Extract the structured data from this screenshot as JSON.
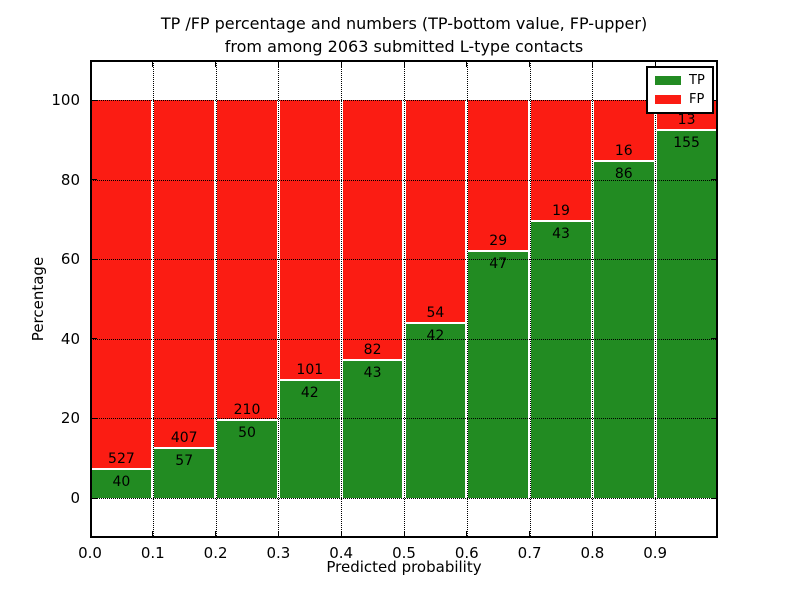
{
  "title": {
    "line1": "TP /FP percentage and numbers (TP-bottom value, FP-upper)",
    "line2": "from among 2063 submitted L-type contacts"
  },
  "axes": {
    "xlabel": "Predicted probability",
    "ylabel": "Percentage",
    "x_tick_labels": [
      "0.0",
      "0.1",
      "0.2",
      "0.3",
      "0.4",
      "0.5",
      "0.6",
      "0.7",
      "0.8",
      "0.9"
    ],
    "y_tick_labels": [
      "0",
      "20",
      "40",
      "60",
      "80",
      "100"
    ]
  },
  "legend": {
    "entries": [
      {
        "label": "TP",
        "color": "#228b22"
      },
      {
        "label": "FP",
        "color": "#fb1c13"
      }
    ]
  },
  "colors": {
    "tp": "#228b22",
    "fp": "#fb1c13",
    "axis": "#000000",
    "background": "#ffffff"
  },
  "chart_data": {
    "type": "bar",
    "stacked": true,
    "normalized_to_percent": true,
    "title": "TP /FP percentage and numbers (TP-bottom value, FP-upper) from among 2063 submitted L-type contacts",
    "xlabel": "Predicted probability",
    "ylabel": "Percentage",
    "total_contacts_in_title": 2063,
    "bin_starts": [
      0.0,
      0.1,
      0.2,
      0.3,
      0.4,
      0.5,
      0.6,
      0.7,
      0.8,
      0.9
    ],
    "bin_width": 0.1,
    "series": [
      {
        "name": "TP",
        "color": "#228b22",
        "counts": [
          40,
          57,
          50,
          42,
          43,
          42,
          47,
          43,
          86,
          155
        ]
      },
      {
        "name": "FP",
        "color": "#fb1c13",
        "counts": [
          527,
          407,
          210,
          101,
          82,
          54,
          29,
          19,
          16,
          13
        ]
      }
    ],
    "bar_height_rule": "TP segment height = TP/(TP+FP)*100; FP segment fills up to 100%",
    "xlim": [
      0.0,
      1.0
    ],
    "ylim": [
      -10,
      110
    ],
    "xticks": [
      0.0,
      0.1,
      0.2,
      0.3,
      0.4,
      0.5,
      0.6,
      0.7,
      0.8,
      0.9
    ],
    "yticks": [
      0,
      20,
      40,
      60,
      80,
      100
    ],
    "grid": "dotted",
    "legend_position": "upper right"
  }
}
